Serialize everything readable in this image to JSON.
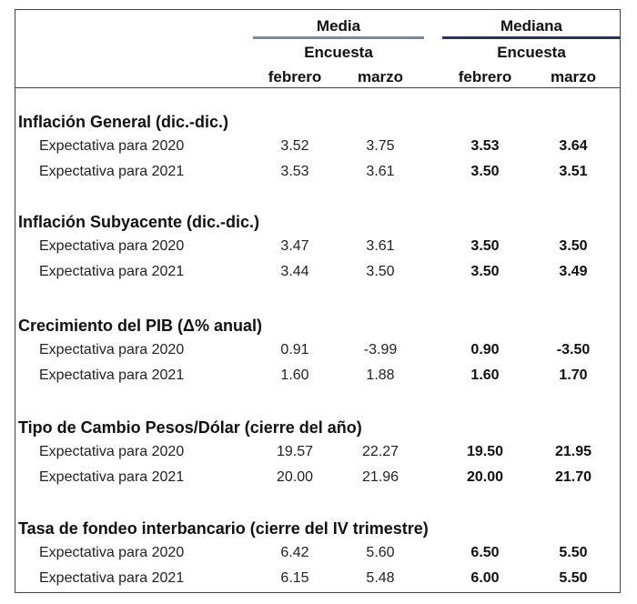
{
  "header": {
    "media": {
      "title": "Media",
      "subtitle": "Encuesta",
      "line_color": "#7f8a99"
    },
    "mediana": {
      "title": "Mediana",
      "subtitle": "Encuesta",
      "line_color": "#2b3350"
    },
    "columns": [
      "febrero",
      "marzo",
      "febrero",
      "marzo"
    ]
  },
  "sections": [
    {
      "title": "Inflación General (dic.-dic.)",
      "rows": [
        {
          "label": "Expectativa para 2020",
          "values": [
            "3.52",
            "3.75",
            "3.53",
            "3.64"
          ]
        },
        {
          "label": "Expectativa para 2021",
          "values": [
            "3.53",
            "3.61",
            "3.50",
            "3.51"
          ]
        }
      ]
    },
    {
      "title": "Inflación Subyacente (dic.-dic.)",
      "rows": [
        {
          "label": "Expectativa para 2020",
          "values": [
            "3.47",
            "3.61",
            "3.50",
            "3.50"
          ]
        },
        {
          "label": "Expectativa para 2021",
          "values": [
            "3.44",
            "3.50",
            "3.50",
            "3.49"
          ]
        }
      ]
    },
    {
      "title": "Crecimiento del PIB (Δ% anual)",
      "rows": [
        {
          "label": "Expectativa para 2020",
          "values": [
            "0.91",
            "-3.99",
            "0.90",
            "-3.50"
          ]
        },
        {
          "label": "Expectativa para 2021",
          "values": [
            "1.60",
            "1.88",
            "1.60",
            "1.70"
          ]
        }
      ]
    },
    {
      "title": "Tipo de Cambio Pesos/Dólar (cierre del año)",
      "rows": [
        {
          "label": "Expectativa para 2020",
          "values": [
            "19.57",
            "22.27",
            "19.50",
            "21.95"
          ]
        },
        {
          "label": "Expectativa para 2021",
          "values": [
            "20.00",
            "21.96",
            "20.00",
            "21.70"
          ]
        }
      ]
    },
    {
      "title": "Tasa de fondeo interbancario (cierre del IV trimestre)",
      "rows": [
        {
          "label": "Expectativa para 2020",
          "values": [
            "6.42",
            "5.60",
            "6.50",
            "5.50"
          ]
        },
        {
          "label": "Expectativa para 2021",
          "values": [
            "6.15",
            "5.48",
            "6.00",
            "5.50"
          ]
        }
      ]
    }
  ]
}
